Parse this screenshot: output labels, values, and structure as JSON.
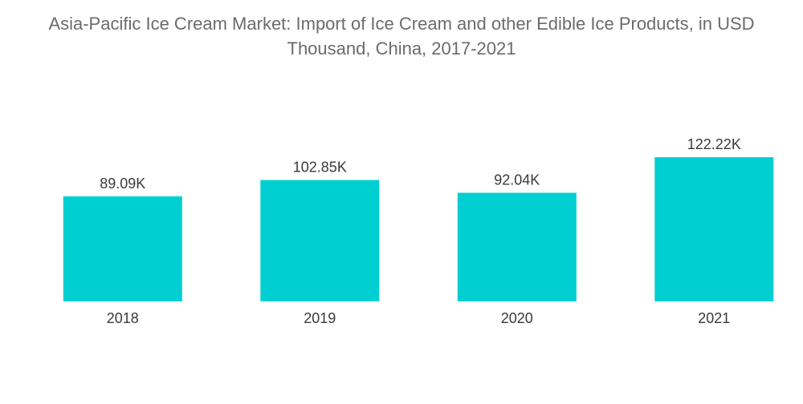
{
  "chart_data": {
    "type": "bar",
    "title_lines": [
      "Asia-Pacific Ice Cream Market: Import of Ice Cream and other Edible Ice Products, in USD",
      "Thousand, China, 2017-2021"
    ],
    "categories": [
      "2018",
      "2019",
      "2020",
      "2021"
    ],
    "values": [
      89.09,
      102.85,
      92.04,
      122.22
    ],
    "value_labels": [
      "89.09K",
      "102.85K",
      "92.04K",
      "122.22K"
    ],
    "xlabel": "",
    "ylabel": "",
    "ylim": [
      0,
      135
    ],
    "grid": false,
    "legend": "none",
    "bar_color": "#00cfd1"
  }
}
